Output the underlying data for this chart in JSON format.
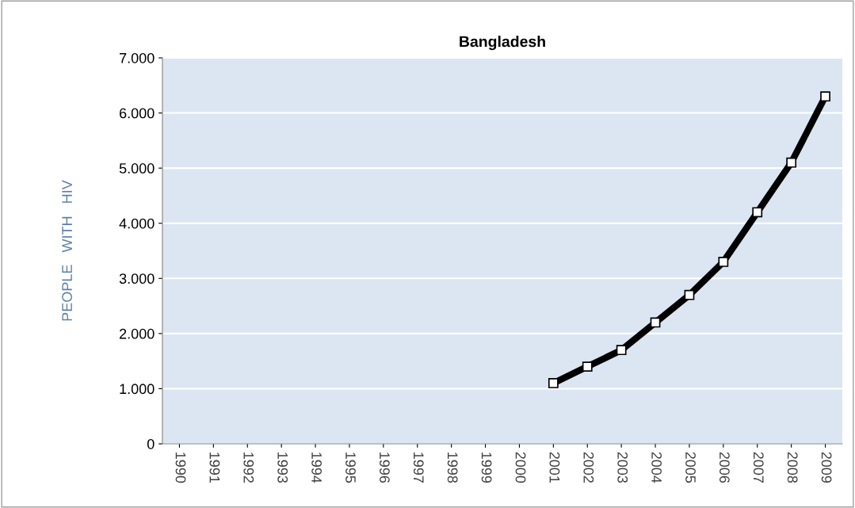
{
  "chart_data": {
    "type": "line",
    "title": "Bangladesh",
    "ylabel": "PEOPLE   WITH   HIV",
    "categories": [
      "1990",
      "1991",
      "1992",
      "1993",
      "1994",
      "1995",
      "1996",
      "1997",
      "1998",
      "1999",
      "2000",
      "2001",
      "2002",
      "2003",
      "2004",
      "2005",
      "2006",
      "2007",
      "2008",
      "2009"
    ],
    "series": [
      {
        "color": "#000000",
        "values": [
          null,
          null,
          null,
          null,
          null,
          null,
          null,
          null,
          null,
          null,
          null,
          1100,
          1400,
          1700,
          2200,
          2700,
          3300,
          4200,
          5100,
          6300
        ]
      }
    ],
    "ylim": [
      0,
      7000
    ],
    "yticks": [
      0,
      {
        "value": 1000,
        "label": "1.000"
      },
      {
        "value": 2000,
        "label": "2.000"
      },
      {
        "value": 3000,
        "label": "3.000"
      },
      {
        "value": 4000,
        "label": "4.000"
      },
      {
        "value": 5000,
        "label": "5.000"
      },
      {
        "value": 6000,
        "label": "6.000"
      },
      {
        "value": 7000,
        "label": "7.000"
      }
    ],
    "grid": "y",
    "marker": "square",
    "line_style": "solid"
  }
}
